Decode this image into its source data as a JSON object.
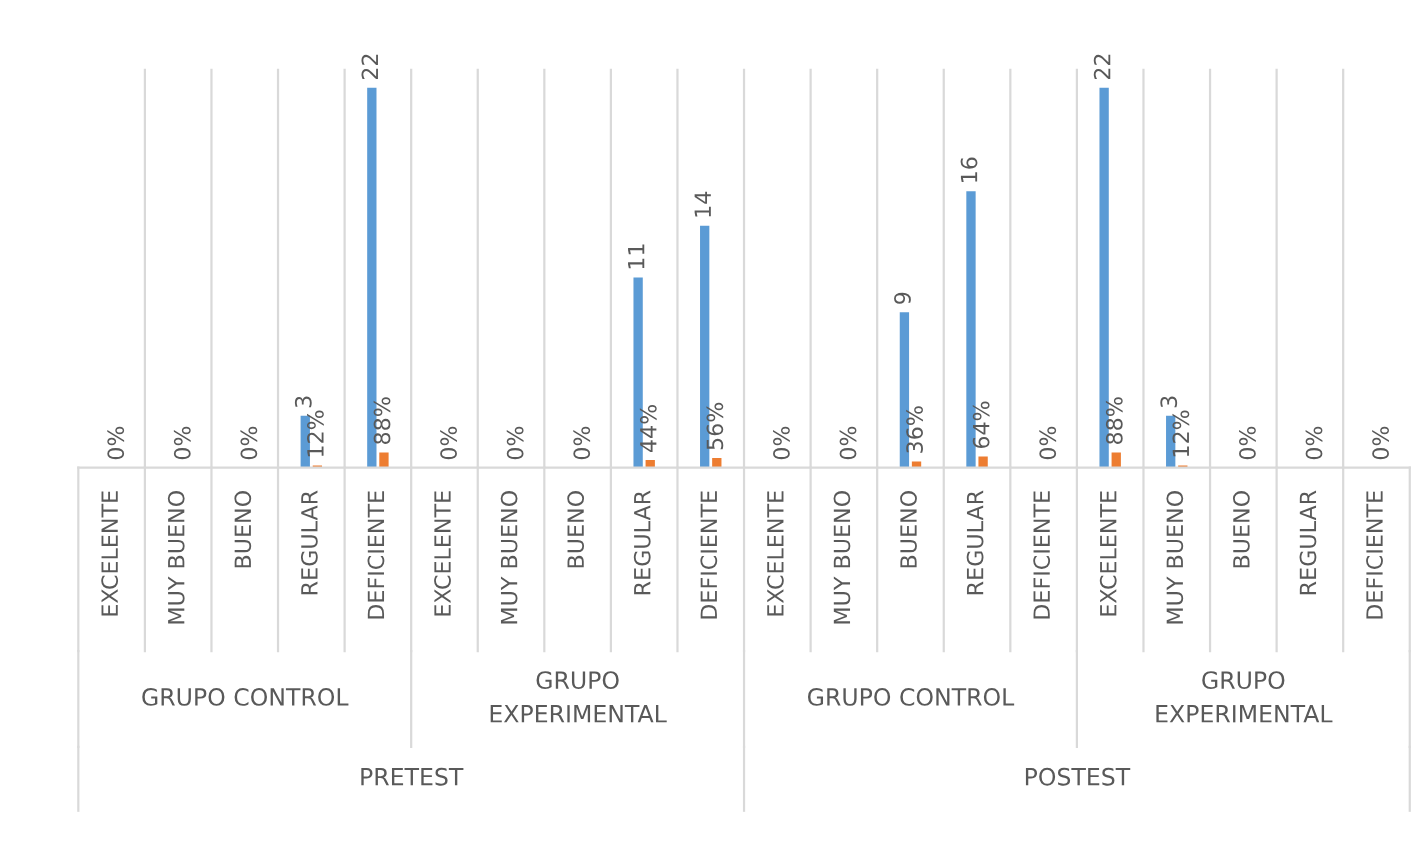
{
  "chart_data": {
    "type": "bar",
    "categories": [
      "EXCELENTE",
      "MUY BUENO",
      "BUENO",
      "REGULAR",
      "DEFICIENTE",
      "EXCELENTE",
      "MUY BUENO",
      "BUENO",
      "REGULAR",
      "DEFICIENTE",
      "EXCELENTE",
      "MUY BUENO",
      "BUENO",
      "REGULAR",
      "DEFICIENTE",
      "EXCELENTE",
      "MUY BUENO",
      "BUENO",
      "REGULAR",
      "DEFICIENTE"
    ],
    "series": [
      {
        "color": "#5b9bd5",
        "values": [
          0,
          0,
          0,
          3,
          22,
          0,
          0,
          0,
          11,
          14,
          0,
          0,
          9,
          16,
          0,
          22,
          3,
          0,
          0,
          0
        ],
        "value_labels": [
          null,
          null,
          null,
          "3",
          "22",
          null,
          null,
          null,
          "11",
          "14",
          null,
          null,
          "9",
          "16",
          null,
          "22",
          "3",
          null,
          null,
          null
        ]
      },
      {
        "color": "#ed7d31",
        "values": [
          0,
          0,
          0,
          0.12,
          0.88,
          0,
          0,
          0,
          0.44,
          0.56,
          0,
          0,
          0.36,
          0.64,
          0,
          0.88,
          0.12,
          0,
          0,
          0
        ],
        "value_labels": [
          "0%",
          "0%",
          "0%",
          "12%",
          "88%",
          "0%",
          "0%",
          "0%",
          "44%",
          "56%",
          "0%",
          "0%",
          "36%",
          "64%",
          "0%",
          "88%",
          "12%",
          "0%",
          "0%",
          "0%"
        ]
      }
    ],
    "annotations": [
      "GRUPO CONTROL",
      "GRUPO\nEXPERIMENTAL",
      "GRUPO CONTROL",
      "GRUPO\nEXPERIMENTAL",
      "PRETEST",
      "POSTEST"
    ],
    "grid": "x",
    "legend": false
  }
}
